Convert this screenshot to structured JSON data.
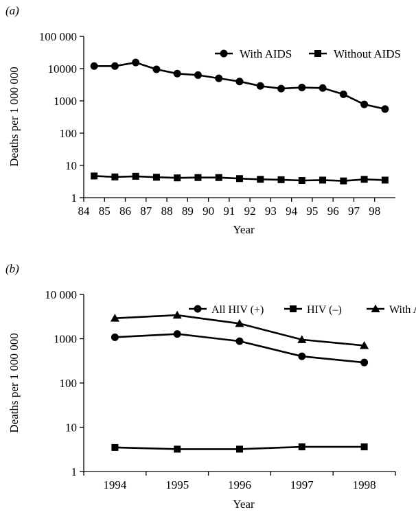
{
  "panels": [
    {
      "panel_label": "(a)",
      "chart_data": {
        "type": "line",
        "scale": "log",
        "xlabel": "Year",
        "ylabel": "Deaths per 1 000 000",
        "x_tick_labels": [
          "84",
          "85",
          "86",
          "87",
          "88",
          "89",
          "90",
          "91",
          "92",
          "93",
          "94",
          "95",
          "96",
          "97",
          "98"
        ],
        "y_tick_labels": [
          "1",
          "10",
          "100",
          "1000",
          "10000",
          "100 000"
        ],
        "xlim": [
          84,
          99
        ],
        "ylim": [
          1,
          100000
        ],
        "legend_position": "top-right",
        "x": [
          84.5,
          85.5,
          86.5,
          87.5,
          88.5,
          89.5,
          90.5,
          91.5,
          92.5,
          93.5,
          94.5,
          95.5,
          96.5,
          97.5,
          98.5
        ],
        "series": [
          {
            "name": "With AIDS",
            "marker": "circle",
            "values": [
              12000,
              12000,
              15500,
              9500,
              7000,
              6300,
              5000,
              4000,
              2900,
              2400,
              2600,
              2500,
              1600,
              780,
              560
            ]
          },
          {
            "name": "Without AIDS",
            "marker": "square",
            "values": [
              4.7,
              4.4,
              4.6,
              4.3,
              4.1,
              4.2,
              4.2,
              3.9,
              3.7,
              3.6,
              3.4,
              3.5,
              3.3,
              3.7,
              3.5
            ]
          }
        ]
      }
    },
    {
      "panel_label": "(b)",
      "chart_data": {
        "type": "line",
        "scale": "log",
        "xlabel": "Year",
        "ylabel": "Deaths per 1 000 000",
        "x_tick_labels": [
          "1994",
          "1995",
          "1996",
          "1997",
          "1998"
        ],
        "y_tick_labels": [
          "1",
          "10",
          "100",
          "1000",
          "10 000"
        ],
        "xlim": [
          1993.5,
          1998.5
        ],
        "ylim": [
          1,
          10000
        ],
        "legend_position": "top-right",
        "x": [
          1994,
          1995,
          1996,
          1997,
          1998
        ],
        "series": [
          {
            "name": "All HIV (+)",
            "marker": "circle",
            "values": [
              1080,
              1280,
              880,
              400,
              290
            ]
          },
          {
            "name": "HIV (–)",
            "marker": "square",
            "values": [
              3.5,
              3.2,
              3.2,
              3.6,
              3.6
            ]
          },
          {
            "name": "With AIDS",
            "marker": "triangle",
            "values": [
              2900,
              3400,
              2200,
              950,
              700
            ]
          }
        ]
      }
    }
  ]
}
